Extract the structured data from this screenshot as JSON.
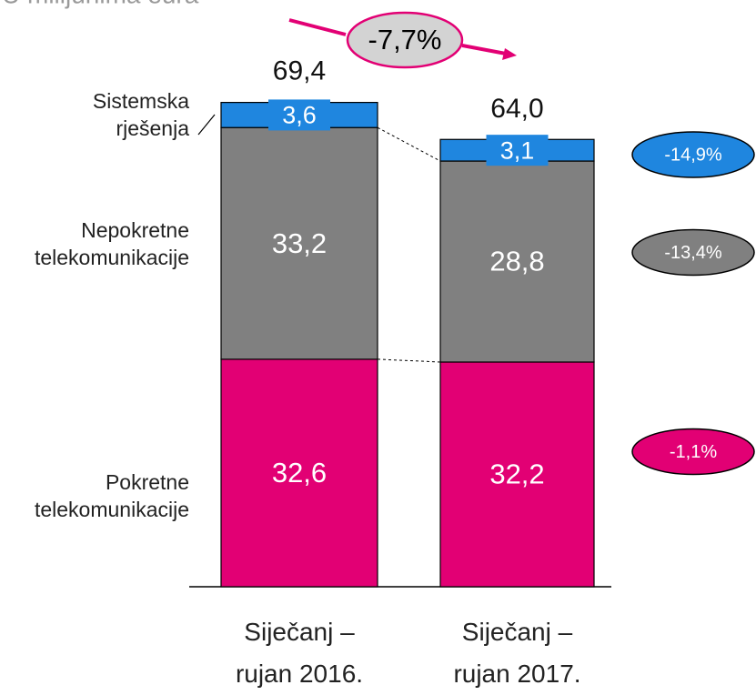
{
  "chart_data": {
    "type": "stacked_bar",
    "title": "U milijunima eura",
    "categories": [
      "Siječanj – rujan 2016.",
      "Siječanj – rujan 2017."
    ],
    "ylim": [
      0,
      70
    ],
    "series": [
      {
        "name": "Pokretne telekomunikacije",
        "color": "#e20074",
        "values": [
          32.6,
          32.2
        ],
        "value_labels": [
          "32,6",
          "32,2"
        ],
        "change": "-1,1%"
      },
      {
        "name": "Nepokretne telekomunikacije",
        "color": "#808080",
        "values": [
          33.2,
          28.8
        ],
        "value_labels": [
          "33,2",
          "28,8"
        ],
        "change": "-13,4%"
      },
      {
        "name": "Sistemska rješenja",
        "color": "#1f86df",
        "values": [
          3.6,
          3.1
        ],
        "value_labels": [
          "3,6",
          "3,1"
        ],
        "change": "-14,9%"
      }
    ],
    "totals": [
      69.4,
      64.0
    ],
    "total_labels": [
      "69,4",
      "64,0"
    ],
    "total_change": "-7,7%"
  }
}
